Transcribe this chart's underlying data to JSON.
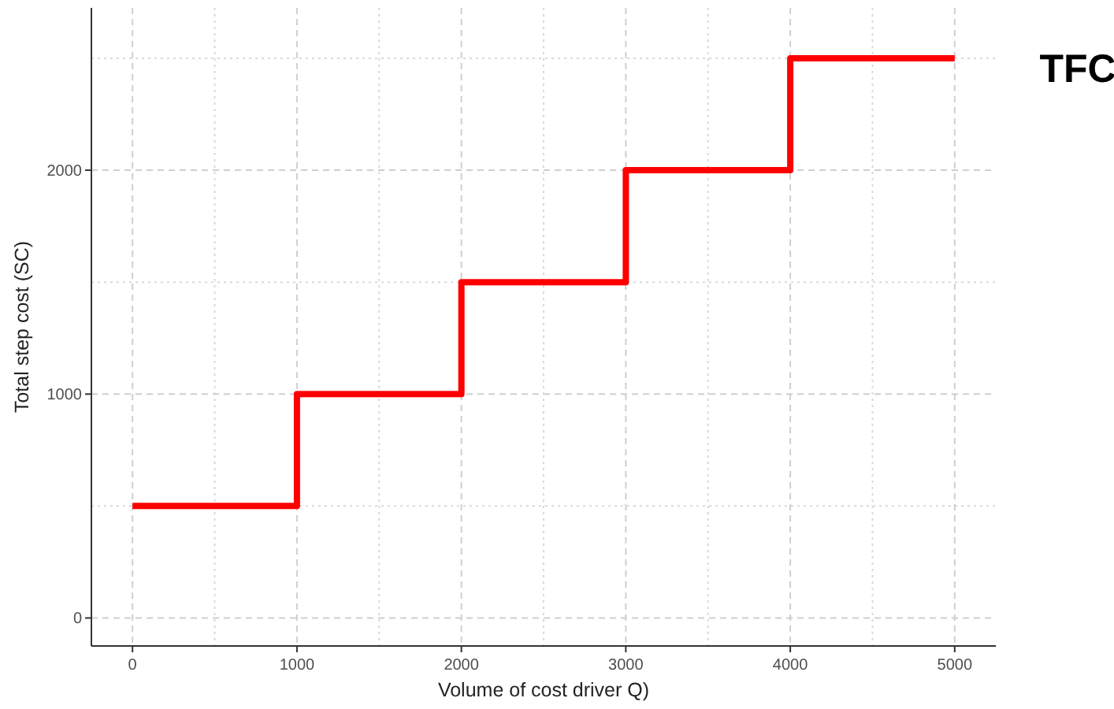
{
  "chart_data": {
    "type": "step",
    "xlabel": "Volume of cost driver Q)",
    "ylabel": "Total step cost (SC)",
    "x": [
      0,
      1000,
      2000,
      3000,
      4000,
      5000
    ],
    "series": [
      {
        "color": "#ff0000",
        "values": [
          500,
          1000,
          1500,
          2000,
          2500,
          2500
        ]
      }
    ],
    "xlim": [
      -250,
      5250
    ],
    "ylim": [
      -125,
      2725
    ],
    "xticks": [
      0,
      1000,
      2000,
      3000,
      4000,
      5000
    ],
    "yticks": [
      0,
      1000,
      2000
    ],
    "grid": true,
    "annotations": [
      "TFC"
    ]
  }
}
